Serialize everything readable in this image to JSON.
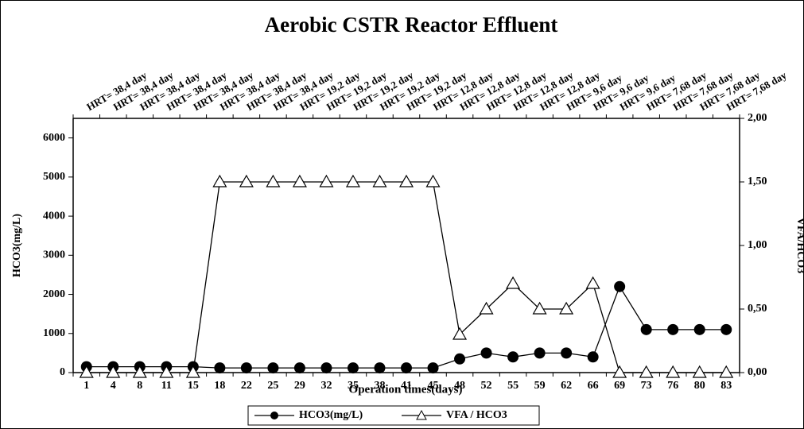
{
  "chart_data": {
    "type": "line",
    "title": "Aerobic CSTR Reactor Effluent",
    "x_label": "Operation times(days)",
    "y_label": "HCO3(mg/L)",
    "y2_label": "VFA/HCO3",
    "categories": [
      "1",
      "4",
      "8",
      "11",
      "15",
      "18",
      "22",
      "25",
      "29",
      "32",
      "35",
      "38",
      "41",
      "45",
      "48",
      "52",
      "55",
      "59",
      "62",
      "66",
      "69",
      "73",
      "76",
      "80",
      "83"
    ],
    "top_labels": [
      "HRT= 38,4 day",
      "HRT= 38,4 day",
      "HRT= 38,4 day",
      "HRT= 38,4 day",
      "HRT= 38,4 day",
      "HRT= 38,4 day",
      "HRT= 38,4 day",
      "HRT= 38,4 day",
      "HRT= 19,2 day",
      "HRT= 19,2 day",
      "HRT= 19,2 day",
      "HRT= 19,2 day",
      "HRT= 19,2 day",
      "HRT= 12,8 day",
      "HRT= 12,8 day",
      "HRT= 12,8 day",
      "HRT= 12,8 day",
      "HRT= 12,8 day",
      "HRT= 9,6 day",
      "HRT= 9,6 day",
      "HRT= 9,6 day",
      "HRT= 7,68 day",
      "HRT= 7,68 day",
      "HRT= 7,68 day",
      "HRT= 7,68 day"
    ],
    "series": [
      {
        "name": "HCO3(mg/L)",
        "color": "#000000",
        "marker": "circle",
        "values": [
          150,
          150,
          150,
          150,
          150,
          120,
          120,
          120,
          120,
          120,
          120,
          120,
          120,
          120,
          350,
          500,
          400,
          500,
          500,
          400,
          2200,
          1100,
          1100,
          1100,
          1100
        ]
      },
      {
        "name": "VFA / HCO3",
        "color": "#000000",
        "marker": "triangle",
        "axis": "y2",
        "values": [
          0,
          0,
          0,
          0,
          0,
          1.5,
          1.5,
          1.5,
          1.5,
          1.5,
          1.5,
          1.5,
          1.5,
          1.5,
          0.3,
          0.5,
          0.7,
          0.5,
          0.5,
          0.7,
          0,
          0,
          0,
          0,
          0
        ]
      }
    ],
    "ylim": [
      0,
      6500
    ],
    "yticks": [
      0,
      1000,
      2000,
      3000,
      4000,
      5000,
      6000
    ],
    "y2lim": [
      0,
      2
    ],
    "y2ticks": [
      {
        "value": 0,
        "label": "0,00"
      },
      {
        "value": 0.5,
        "label": "0,50"
      },
      {
        "value": 1,
        "label": "1,00"
      },
      {
        "value": 1.5,
        "label": "1,50"
      },
      {
        "value": 2,
        "label": "2,00"
      }
    ]
  }
}
